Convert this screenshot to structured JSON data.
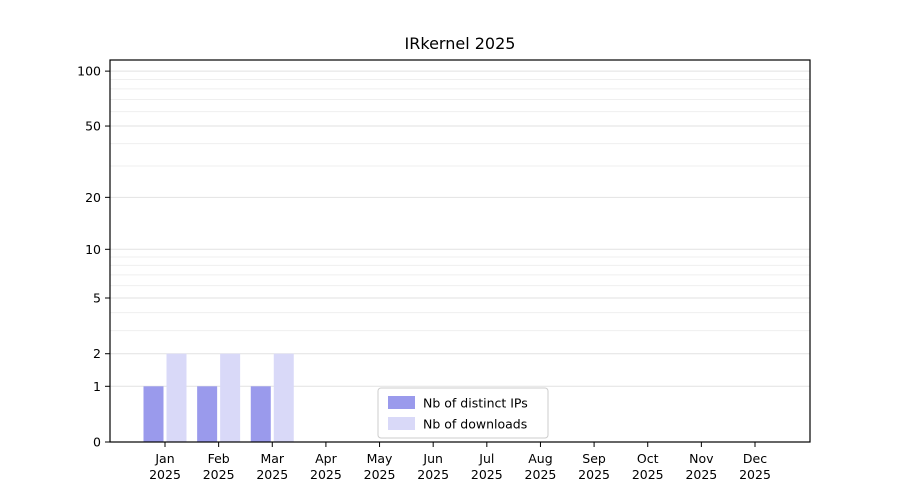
{
  "chart_data": {
    "type": "bar",
    "title": "IRkernel 2025",
    "categories": [
      "Jan",
      "Feb",
      "Mar",
      "Apr",
      "May",
      "Jun",
      "Jul",
      "Aug",
      "Sep",
      "Oct",
      "Nov",
      "Dec"
    ],
    "category_year": "2025",
    "series": [
      {
        "name": "Nb of distinct IPs",
        "color": "#9a9aec",
        "values": [
          1,
          1,
          1,
          0,
          0,
          0,
          0,
          0,
          0,
          0,
          0,
          0
        ]
      },
      {
        "name": "Nb of downloads",
        "color": "#d9d9f8",
        "values": [
          2,
          2,
          2,
          0,
          0,
          0,
          0,
          0,
          0,
          0,
          0,
          0
        ]
      }
    ],
    "xlabel": "",
    "ylabel": "",
    "yscale": "log1p",
    "yticks": [
      0,
      1,
      2,
      5,
      10,
      20,
      50,
      100
    ],
    "minor_yticks": [
      3,
      4,
      6,
      7,
      8,
      9,
      30,
      40,
      60,
      70,
      80,
      90
    ],
    "ylim": [
      0,
      115
    ],
    "grid": "horizontal",
    "legend_position": "lower center inside"
  },
  "colors": {
    "axis": "#000000",
    "grid_major": "#e2e2e2",
    "grid_minor": "#efefef",
    "legend_border": "#cccccc",
    "background": "#ffffff"
  }
}
